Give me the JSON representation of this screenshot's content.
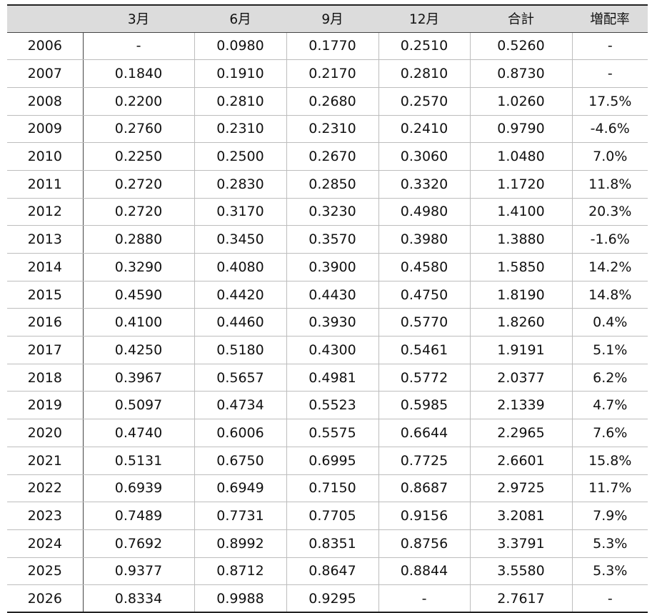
{
  "table": {
    "headers": [
      "",
      "3月",
      "6月",
      "9月",
      "12月",
      "合計",
      "増配率"
    ],
    "rows": [
      [
        "2006",
        "-",
        "0.0980",
        "0.1770",
        "0.2510",
        "0.5260",
        "-"
      ],
      [
        "2007",
        "0.1840",
        "0.1910",
        "0.2170",
        "0.2810",
        "0.8730",
        "-"
      ],
      [
        "2008",
        "0.2200",
        "0.2810",
        "0.2680",
        "0.2570",
        "1.0260",
        "17.5%"
      ],
      [
        "2009",
        "0.2760",
        "0.2310",
        "0.2310",
        "0.2410",
        "0.9790",
        "-4.6%"
      ],
      [
        "2010",
        "0.2250",
        "0.2500",
        "0.2670",
        "0.3060",
        "1.0480",
        "7.0%"
      ],
      [
        "2011",
        "0.2720",
        "0.2830",
        "0.2850",
        "0.3320",
        "1.1720",
        "11.8%"
      ],
      [
        "2012",
        "0.2720",
        "0.3170",
        "0.3230",
        "0.4980",
        "1.4100",
        "20.3%"
      ],
      [
        "2013",
        "0.2880",
        "0.3450",
        "0.3570",
        "0.3980",
        "1.3880",
        "-1.6%"
      ],
      [
        "2014",
        "0.3290",
        "0.4080",
        "0.3900",
        "0.4580",
        "1.5850",
        "14.2%"
      ],
      [
        "2015",
        "0.4590",
        "0.4420",
        "0.4430",
        "0.4750",
        "1.8190",
        "14.8%"
      ],
      [
        "2016",
        "0.4100",
        "0.4460",
        "0.3930",
        "0.5770",
        "1.8260",
        "0.4%"
      ],
      [
        "2017",
        "0.4250",
        "0.5180",
        "0.4300",
        "0.5461",
        "1.9191",
        "5.1%"
      ],
      [
        "2018",
        "0.3967",
        "0.5657",
        "0.4981",
        "0.5772",
        "2.0377",
        "6.2%"
      ],
      [
        "2019",
        "0.5097",
        "0.4734",
        "0.5523",
        "0.5985",
        "2.1339",
        "4.7%"
      ],
      [
        "2020",
        "0.4740",
        "0.6006",
        "0.5575",
        "0.6644",
        "2.2965",
        "7.6%"
      ],
      [
        "2021",
        "0.5131",
        "0.6750",
        "0.6995",
        "0.7725",
        "2.6601",
        "15.8%"
      ],
      [
        "2022",
        "0.6939",
        "0.6949",
        "0.7150",
        "0.8687",
        "2.9725",
        "11.7%"
      ],
      [
        "2023",
        "0.7489",
        "0.7731",
        "0.7705",
        "0.9156",
        "3.2081",
        "7.9%"
      ],
      [
        "2024",
        "0.7692",
        "0.8992",
        "0.8351",
        "0.8756",
        "3.3791",
        "5.3%"
      ],
      [
        "2025",
        "0.9377",
        "0.8712",
        "0.8647",
        "0.8844",
        "3.5580",
        "5.3%"
      ],
      [
        "2026",
        "0.8334",
        "0.9988",
        "0.9295",
        "-",
        "2.7617",
        "-"
      ]
    ]
  }
}
